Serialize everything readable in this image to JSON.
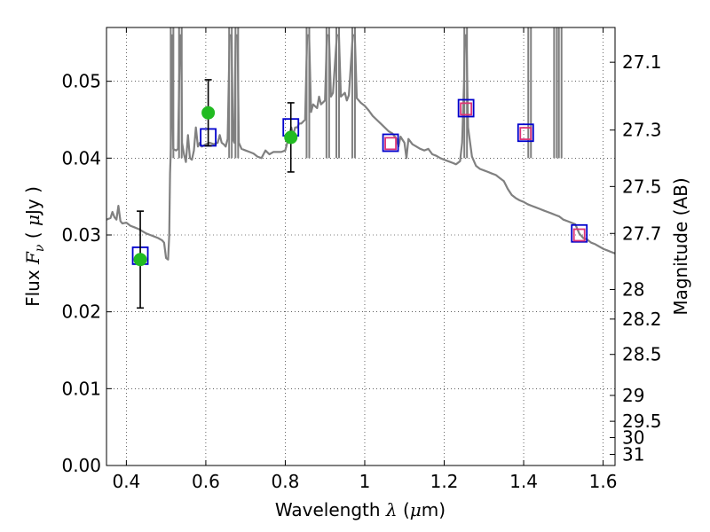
{
  "chart_data": {
    "type": "scatter",
    "title": "",
    "xlabel": {
      "prefix": "Wavelength",
      "symbol": "λ",
      "unit_open": "(",
      "unit_mu": "μ",
      "unit_rest": "m)"
    },
    "ylabel": {
      "prefix": "Flux",
      "symbol": "F",
      "sub": "ν",
      "unit_open": "(",
      "unit_mu": "μ",
      "unit_rest": "Jy )"
    },
    "y2label": "Magnitude (AB)",
    "xlim": [
      0.35,
      1.63
    ],
    "ylim": [
      0.0,
      0.057
    ],
    "grid": true,
    "x_ticks": [
      {
        "v": 0.4,
        "label": "0.4"
      },
      {
        "v": 0.6,
        "label": "0.6"
      },
      {
        "v": 0.8,
        "label": "0.8"
      },
      {
        "v": 1.0,
        "label": "1"
      },
      {
        "v": 1.2,
        "label": "1.2"
      },
      {
        "v": 1.4,
        "label": "1.4"
      },
      {
        "v": 1.6,
        "label": "1.6"
      }
    ],
    "y_ticks": [
      {
        "v": 0.0,
        "label": "0.00"
      },
      {
        "v": 0.01,
        "label": "0.01"
      },
      {
        "v": 0.02,
        "label": "0.02"
      },
      {
        "v": 0.03,
        "label": "0.03"
      },
      {
        "v": 0.04,
        "label": "0.04"
      },
      {
        "v": 0.05,
        "label": "0.05"
      }
    ],
    "y2_ticks": [
      {
        "mag": 27.1,
        "label": "27.1"
      },
      {
        "mag": 27.3,
        "label": "27.3"
      },
      {
        "mag": 27.5,
        "label": "27.5"
      },
      {
        "mag": 27.7,
        "label": "27.7"
      },
      {
        "mag": 28,
        "label": "28"
      },
      {
        "mag": 28.2,
        "label": "28.2"
      },
      {
        "mag": 28.5,
        "label": "28.5"
      },
      {
        "mag": 29,
        "label": "29"
      },
      {
        "mag": 29.5,
        "label": "29.5"
      },
      {
        "mag": 30,
        "label": "30"
      },
      {
        "mag": 31,
        "label": "31"
      }
    ],
    "series": [
      {
        "kind": "model_sed",
        "color": "#808080",
        "points": [
          [
            0.35,
            0.032
          ],
          [
            0.36,
            0.0322
          ],
          [
            0.365,
            0.033
          ],
          [
            0.37,
            0.0323
          ],
          [
            0.375,
            0.032
          ],
          [
            0.38,
            0.0338
          ],
          [
            0.385,
            0.0318
          ],
          [
            0.39,
            0.0315
          ],
          [
            0.4,
            0.0316
          ],
          [
            0.41,
            0.0312
          ],
          [
            0.42,
            0.031
          ],
          [
            0.43,
            0.0308
          ],
          [
            0.44,
            0.0305
          ],
          [
            0.45,
            0.0302
          ],
          [
            0.46,
            0.03
          ],
          [
            0.47,
            0.0298
          ],
          [
            0.48,
            0.0296
          ],
          [
            0.49,
            0.0293
          ],
          [
            0.495,
            0.029
          ],
          [
            0.5,
            0.027
          ],
          [
            0.505,
            0.0268
          ],
          [
            0.508,
            0.03
          ],
          [
            0.51,
            0.038
          ],
          [
            0.512,
            0.0412
          ],
          [
            0.515,
            0.056
          ],
          [
            0.518,
            0.0412
          ],
          [
            0.525,
            0.041
          ],
          [
            0.53,
            0.0412
          ],
          [
            0.535,
            0.056
          ],
          [
            0.538,
            0.056
          ],
          [
            0.54,
            0.042
          ],
          [
            0.545,
            0.0405
          ],
          [
            0.55,
            0.0395
          ],
          [
            0.555,
            0.043
          ],
          [
            0.56,
            0.04
          ],
          [
            0.565,
            0.0398
          ],
          [
            0.57,
            0.041
          ],
          [
            0.575,
            0.044
          ],
          [
            0.58,
            0.0415
          ],
          [
            0.585,
            0.042
          ],
          [
            0.59,
            0.0415
          ],
          [
            0.6,
            0.0418
          ],
          [
            0.61,
            0.042
          ],
          [
            0.62,
            0.0418
          ],
          [
            0.63,
            0.042
          ],
          [
            0.635,
            0.043
          ],
          [
            0.64,
            0.042
          ],
          [
            0.645,
            0.0418
          ],
          [
            0.65,
            0.0415
          ],
          [
            0.655,
            0.0425
          ],
          [
            0.66,
            0.056
          ],
          [
            0.665,
            0.056
          ],
          [
            0.668,
            0.0425
          ],
          [
            0.672,
            0.042
          ],
          [
            0.675,
            0.056
          ],
          [
            0.68,
            0.056
          ],
          [
            0.683,
            0.042
          ],
          [
            0.69,
            0.0412
          ],
          [
            0.7,
            0.041
          ],
          [
            0.71,
            0.0408
          ],
          [
            0.72,
            0.0406
          ],
          [
            0.73,
            0.0402
          ],
          [
            0.74,
            0.04
          ],
          [
            0.75,
            0.041
          ],
          [
            0.76,
            0.0405
          ],
          [
            0.77,
            0.0408
          ],
          [
            0.78,
            0.0408
          ],
          [
            0.79,
            0.0408
          ],
          [
            0.8,
            0.041
          ],
          [
            0.805,
            0.042
          ],
          [
            0.81,
            0.043
          ],
          [
            0.815,
            0.044
          ],
          [
            0.82,
            0.043
          ],
          [
            0.825,
            0.044
          ],
          [
            0.83,
            0.044
          ],
          [
            0.835,
            0.0445
          ],
          [
            0.84,
            0.0445
          ],
          [
            0.85,
            0.045
          ],
          [
            0.855,
            0.056
          ],
          [
            0.86,
            0.056
          ],
          [
            0.865,
            0.046
          ],
          [
            0.87,
            0.047
          ],
          [
            0.88,
            0.0465
          ],
          [
            0.885,
            0.048
          ],
          [
            0.89,
            0.047
          ],
          [
            0.9,
            0.0475
          ],
          [
            0.905,
            0.056
          ],
          [
            0.91,
            0.056
          ],
          [
            0.915,
            0.048
          ],
          [
            0.92,
            0.0485
          ],
          [
            0.93,
            0.056
          ],
          [
            0.935,
            0.056
          ],
          [
            0.94,
            0.048
          ],
          [
            0.95,
            0.0485
          ],
          [
            0.955,
            0.0475
          ],
          [
            0.96,
            0.0482
          ],
          [
            0.97,
            0.056
          ],
          [
            0.975,
            0.056
          ],
          [
            0.98,
            0.0478
          ],
          [
            0.99,
            0.0472
          ],
          [
            1.0,
            0.0468
          ],
          [
            1.01,
            0.0462
          ],
          [
            1.02,
            0.0455
          ],
          [
            1.03,
            0.045
          ],
          [
            1.04,
            0.0445
          ],
          [
            1.05,
            0.044
          ],
          [
            1.06,
            0.0435
          ],
          [
            1.07,
            0.0432
          ],
          [
            1.08,
            0.0425
          ],
          [
            1.085,
            0.0415
          ],
          [
            1.09,
            0.0428
          ],
          [
            1.1,
            0.042
          ],
          [
            1.105,
            0.04
          ],
          [
            1.11,
            0.0425
          ],
          [
            1.12,
            0.0418
          ],
          [
            1.13,
            0.0415
          ],
          [
            1.14,
            0.0412
          ],
          [
            1.15,
            0.041
          ],
          [
            1.16,
            0.0412
          ],
          [
            1.17,
            0.0405
          ],
          [
            1.18,
            0.0403
          ],
          [
            1.19,
            0.04
          ],
          [
            1.2,
            0.0398
          ],
          [
            1.21,
            0.0396
          ],
          [
            1.22,
            0.0394
          ],
          [
            1.23,
            0.0392
          ],
          [
            1.24,
            0.0396
          ],
          [
            1.245,
            0.042
          ],
          [
            1.25,
            0.05
          ],
          [
            1.252,
            0.056
          ],
          [
            1.256,
            0.056
          ],
          [
            1.26,
            0.044
          ],
          [
            1.27,
            0.0402
          ],
          [
            1.28,
            0.039
          ],
          [
            1.29,
            0.0386
          ],
          [
            1.3,
            0.0384
          ],
          [
            1.31,
            0.0382
          ],
          [
            1.32,
            0.038
          ],
          [
            1.33,
            0.0378
          ],
          [
            1.34,
            0.0374
          ],
          [
            1.35,
            0.037
          ],
          [
            1.36,
            0.036
          ],
          [
            1.37,
            0.0352
          ],
          [
            1.38,
            0.0348
          ],
          [
            1.39,
            0.0345
          ],
          [
            1.4,
            0.0343
          ],
          [
            1.41,
            0.034
          ],
          [
            1.42,
            0.0338
          ],
          [
            1.43,
            0.0336
          ],
          [
            1.44,
            0.0334
          ],
          [
            1.45,
            0.0332
          ],
          [
            1.46,
            0.033
          ],
          [
            1.47,
            0.0328
          ],
          [
            1.48,
            0.0326
          ],
          [
            1.49,
            0.0324
          ],
          [
            1.5,
            0.032
          ],
          [
            1.51,
            0.0318
          ],
          [
            1.52,
            0.0316
          ],
          [
            1.53,
            0.0314
          ],
          [
            1.54,
            0.0302
          ],
          [
            1.55,
            0.0296
          ],
          [
            1.56,
            0.0294
          ],
          [
            1.57,
            0.029
          ],
          [
            1.58,
            0.0288
          ],
          [
            1.59,
            0.0285
          ],
          [
            1.6,
            0.0282
          ],
          [
            1.61,
            0.028
          ],
          [
            1.62,
            0.0278
          ],
          [
            1.63,
            0.0276
          ]
        ],
        "spikes": [
          {
            "x": 0.515,
            "y": 0.056
          },
          {
            "x": 0.536,
            "y": 0.056
          },
          {
            "x": 0.662,
            "y": 0.056
          },
          {
            "x": 0.678,
            "y": 0.056
          },
          {
            "x": 0.857,
            "y": 0.056
          },
          {
            "x": 0.907,
            "y": 0.056
          },
          {
            "x": 0.932,
            "y": 0.056
          },
          {
            "x": 0.972,
            "y": 0.056
          },
          {
            "x": 1.254,
            "y": 0.056
          },
          {
            "x": 1.415,
            "y": 0.056
          },
          {
            "x": 1.48,
            "y": 0.056
          },
          {
            "x": 1.492,
            "y": 0.056
          }
        ]
      },
      {
        "kind": "model_photometry",
        "color": "#0000cc",
        "points": [
          {
            "x": 0.435,
            "y": 0.0273
          },
          {
            "x": 0.606,
            "y": 0.0427
          },
          {
            "x": 0.814,
            "y": 0.044
          },
          {
            "x": 1.065,
            "y": 0.042
          },
          {
            "x": 1.255,
            "y": 0.0465
          },
          {
            "x": 1.405,
            "y": 0.0433
          },
          {
            "x": 1.54,
            "y": 0.0302
          }
        ]
      },
      {
        "kind": "observed_ir",
        "color": "#dd3377",
        "points": [
          {
            "x": 1.065,
            "y": 0.0419
          },
          {
            "x": 1.255,
            "y": 0.0464
          },
          {
            "x": 1.405,
            "y": 0.0432
          },
          {
            "x": 1.54,
            "y": 0.03
          }
        ]
      },
      {
        "kind": "observed_optical",
        "color": "#22bb22",
        "points": [
          {
            "x": 0.435,
            "y": 0.0268,
            "err": 0.0063
          },
          {
            "x": 0.606,
            "y": 0.0459,
            "err": 0.0043
          },
          {
            "x": 0.814,
            "y": 0.0427,
            "err": 0.0045
          }
        ]
      }
    ]
  }
}
